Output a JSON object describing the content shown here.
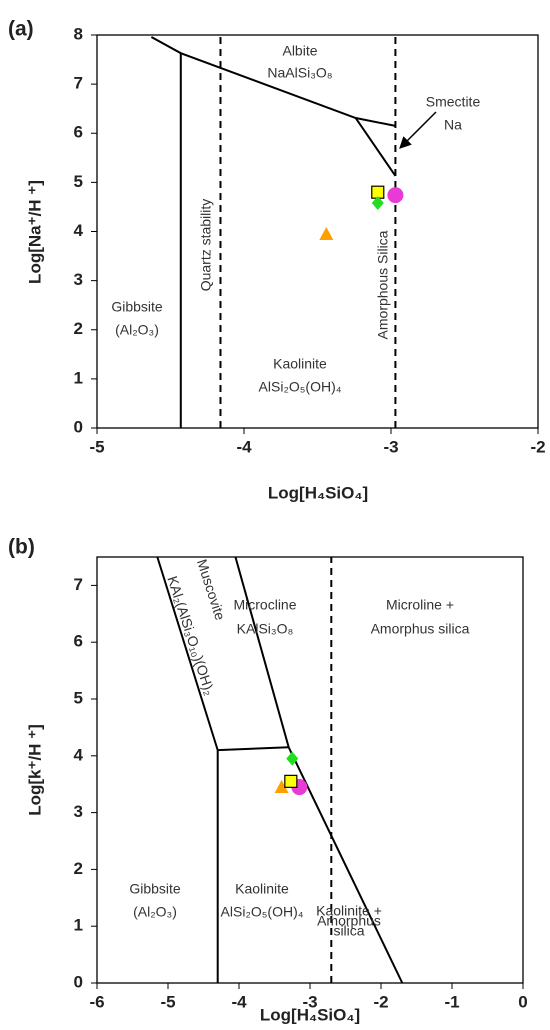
{
  "chart_data": [
    {
      "type": "scatter",
      "panel_label": "(a)",
      "xlabel": "Log[H₄SiO₄]",
      "ylabel": "Log[Na⁺/H ⁺]",
      "xlim": [
        -5,
        -2
      ],
      "ylim": [
        0,
        8
      ],
      "xticks": [
        -5,
        -4,
        -3,
        -2
      ],
      "yticks": [
        0,
        1,
        2,
        3,
        4,
        5,
        6,
        7,
        8
      ],
      "lines": [
        {
          "x": [
            -4.63,
            -4.43,
            -3.24,
            -2.97
          ],
          "y": [
            7.96,
            7.63,
            6.31,
            6.15
          ],
          "dashed": false
        },
        {
          "x": [
            -4.43,
            -4.43
          ],
          "y": [
            7.63,
            0
          ],
          "dashed": false
        },
        {
          "x": [
            -3.24,
            -2.97
          ],
          "y": [
            6.31,
            5.13
          ],
          "dashed": false
        },
        {
          "x": [
            -4.16,
            -4.16
          ],
          "y": [
            0,
            8
          ],
          "dashed": true
        },
        {
          "x": [
            -2.97,
            -2.97
          ],
          "y": [
            0,
            8
          ],
          "dashed": true
        }
      ],
      "points": [
        {
          "marker": "circle",
          "color": "#e83ad6",
          "x": [
            -2.97
          ],
          "y": [
            4.74
          ]
        },
        {
          "marker": "square",
          "color": "#ffff00",
          "x": [
            -3.09
          ],
          "y": [
            4.8
          ]
        },
        {
          "marker": "diamond",
          "color": "#22dd22",
          "x": [
            -3.09
          ],
          "y": [
            4.58
          ]
        },
        {
          "marker": "triangle",
          "color": "#ffa000",
          "x": [
            -3.44
          ],
          "y": [
            3.95
          ]
        }
      ],
      "annotations": [
        "Albite",
        "NaAlSi₃O₈",
        "Smectite",
        "Na",
        "Gibbsite",
        "(Al₂O₃)",
        "Kaolinite",
        "AlSi₂O₅(OH)₄",
        "Quartz stability",
        "Amorphous Silica"
      ]
    },
    {
      "type": "scatter",
      "panel_label": "(b)",
      "xlabel": "Log[H₄SiO₄]",
      "ylabel": "Log[k⁺/H ⁺]",
      "xlim": [
        -6,
        0
      ],
      "ylim": [
        0,
        7.5
      ],
      "xticks": [
        -6,
        -5,
        -4,
        -3,
        -2,
        -1,
        0
      ],
      "yticks": [
        0,
        1,
        2,
        3,
        4,
        5,
        6,
        7
      ],
      "lines": [
        {
          "x": [
            -5.15,
            -4.3
          ],
          "y": [
            7.5,
            4.1
          ],
          "dashed": false
        },
        {
          "x": [
            -4.3,
            -4.3
          ],
          "y": [
            4.1,
            0
          ],
          "dashed": false
        },
        {
          "x": [
            -4.3,
            -3.3
          ],
          "y": [
            4.1,
            4.15
          ],
          "dashed": false
        },
        {
          "x": [
            -4.05,
            -3.3,
            -1.7
          ],
          "y": [
            7.5,
            4.15,
            0
          ],
          "dashed": false
        },
        {
          "x": [
            -2.7,
            -2.7
          ],
          "y": [
            0,
            7.5
          ],
          "dashed": true
        }
      ],
      "points": [
        {
          "marker": "circle",
          "color": "#e83ad6",
          "x": [
            -3.15
          ],
          "y": [
            3.45
          ]
        },
        {
          "marker": "triangle",
          "color": "#ffa000",
          "x": [
            -3.4
          ],
          "y": [
            3.45
          ]
        },
        {
          "marker": "square",
          "color": "#ffff00",
          "x": [
            -3.27
          ],
          "y": [
            3.55
          ]
        },
        {
          "marker": "diamond",
          "color": "#22dd22",
          "x": [
            -3.25
          ],
          "y": [
            3.95
          ]
        }
      ],
      "annotations": [
        "Muscovite",
        "KAl₂(AlSi₃O₁₀)(OH)₂",
        "Microcline",
        "KAlSi₃O₈",
        "Microline +",
        "Amorphus silica",
        "Gibbsite",
        "(Al₂O₃)",
        "Kaolinite",
        "AlSi₂O₅(OH)₄",
        "Kaolinite +",
        "Amorphus",
        "silica"
      ]
    }
  ]
}
